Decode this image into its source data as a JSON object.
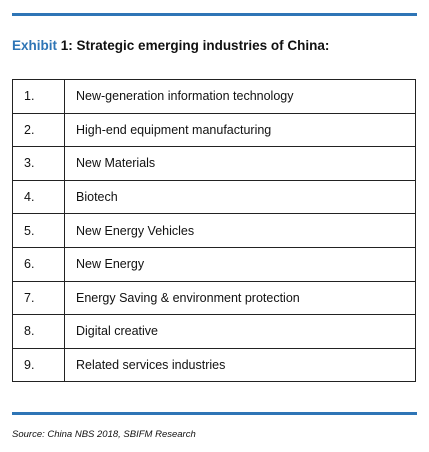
{
  "title": {
    "label": "Exhibit",
    "text": "1: Strategic emerging industries of China:"
  },
  "table": {
    "rows": [
      [
        "1.",
        "New-generation information technology"
      ],
      [
        "2.",
        "High-end equipment manufacturing"
      ],
      [
        "3.",
        "New Materials"
      ],
      [
        "4.",
        "Biotech"
      ],
      [
        "5.",
        "New Energy Vehicles"
      ],
      [
        "6.",
        "New Energy"
      ],
      [
        "7.",
        "Energy Saving & environment protection"
      ],
      [
        "8.",
        "Digital creative"
      ],
      [
        "9.",
        "Related services industries"
      ]
    ]
  },
  "source": "Source: China NBS 2018, SBIFM Research"
}
